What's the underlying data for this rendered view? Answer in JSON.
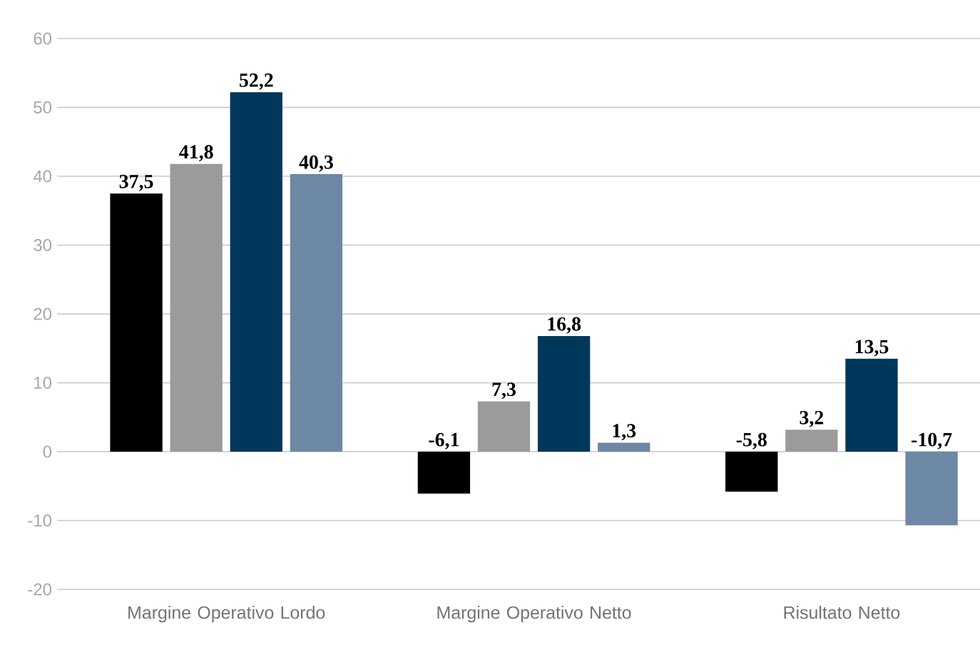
{
  "chart_data": {
    "type": "bar",
    "categories": [
      "Margine Operativo Lordo",
      "Margine Operativo Netto",
      "Risultato Netto"
    ],
    "series": [
      {
        "color": "#000000",
        "values": [
          37.5,
          -6.1,
          -5.8
        ],
        "value_labels": [
          "37,5",
          "-6,1",
          "-5,8"
        ]
      },
      {
        "color": "#9b9b9d",
        "values": [
          41.8,
          7.3,
          3.2
        ],
        "value_labels": [
          "41,8",
          "7,3",
          "3,2"
        ]
      },
      {
        "color": "#02375c",
        "values": [
          52.2,
          16.8,
          13.5
        ],
        "value_labels": [
          "52,2",
          "16,8",
          "13,5"
        ]
      },
      {
        "color": "#6d88a4",
        "values": [
          40.3,
          1.3,
          -10.7
        ],
        "value_labels": [
          "40,3",
          "1,3",
          "-10,7"
        ]
      }
    ],
    "ylim": [
      -20,
      60
    ],
    "yticks": [
      -20,
      -10,
      0,
      10,
      20,
      30,
      40,
      50,
      60
    ],
    "grid": "y"
  }
}
